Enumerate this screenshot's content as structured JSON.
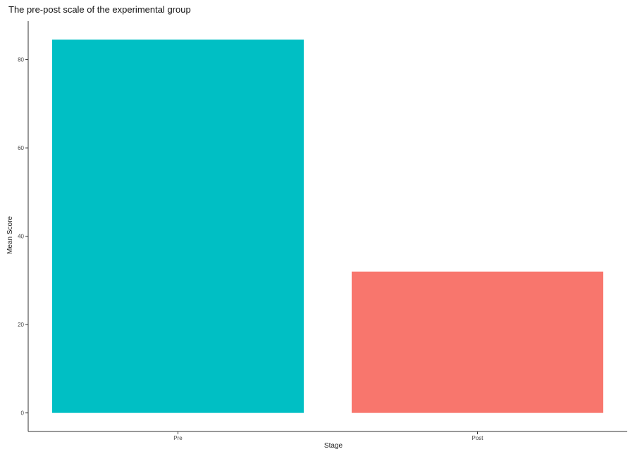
{
  "chart_data": {
    "type": "bar",
    "title": "The pre-post scale of the experimental group",
    "xlabel": "Stage",
    "ylabel": "Mean Score",
    "categories": [
      "Pre",
      "Post"
    ],
    "values": [
      84.5,
      32
    ],
    "bar_colors": [
      "#00BFC4",
      "#F8766D"
    ],
    "y_ticks": [
      0,
      20,
      40,
      60,
      80
    ],
    "ylim": [
      -4.2,
      88.7
    ],
    "grid": false,
    "legend": "none"
  }
}
